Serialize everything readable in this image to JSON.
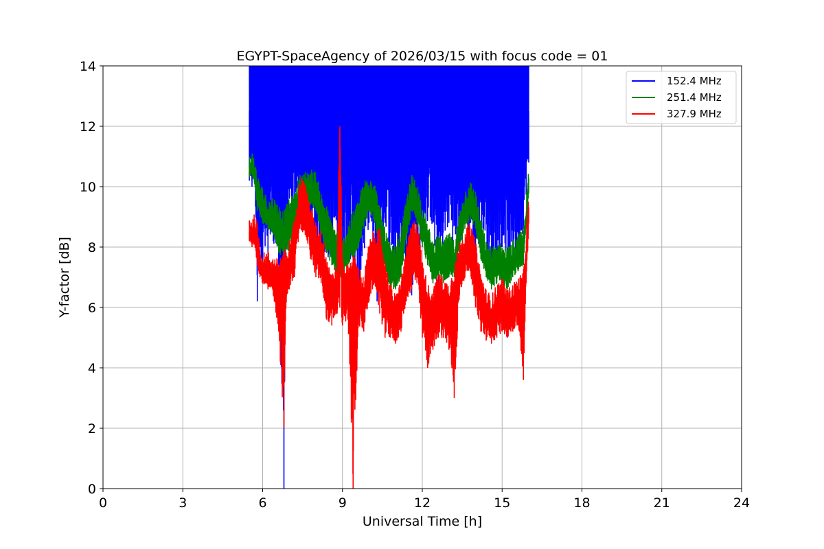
{
  "chart_data": {
    "type": "line",
    "title": "EGYPT-SpaceAgency of 2026/03/15 with focus code = 01",
    "xlabel": "Universal Time [h]",
    "ylabel": "Y-factor [dB]",
    "xlim": [
      0,
      24
    ],
    "ylim": [
      0,
      14
    ],
    "xticks": [
      0,
      3,
      6,
      9,
      12,
      15,
      18,
      21,
      24
    ],
    "yticks": [
      0,
      2,
      4,
      6,
      8,
      10,
      12,
      14
    ],
    "grid": true,
    "legend_position": "top-right",
    "series": [
      {
        "name": "152.4 MHz",
        "color": "#0000ff",
        "x": [
          5.5,
          5.6,
          5.7,
          5.8,
          5.9,
          6.0,
          6.2,
          6.4,
          6.6,
          6.8,
          6.9,
          7.0,
          7.2,
          7.5,
          7.8,
          8.0,
          8.3,
          8.6,
          9.0,
          9.3,
          9.6,
          10.0,
          10.3,
          10.6,
          11.0,
          11.3,
          11.6,
          12.0,
          12.3,
          12.6,
          13.0,
          13.3,
          13.6,
          14.0,
          14.3,
          14.6,
          15.0,
          15.3,
          15.6,
          15.8,
          16.0
        ],
        "y": [
          12.5,
          11.5,
          12.0,
          10.5,
          11.8,
          12.2,
          11.0,
          12.8,
          11.5,
          11.0,
          12.0,
          12.5,
          11.8,
          12.5,
          11.2,
          12.3,
          11.5,
          12.4,
          11.8,
          12.6,
          11.4,
          12.2,
          11.0,
          12.0,
          11.6,
          11.0,
          12.3,
          11.5,
          12.1,
          11.3,
          12.4,
          11.7,
          12.2,
          11.2,
          12.0,
          11.5,
          12.4,
          11.2,
          12.0,
          11.6,
          12.5
        ],
        "min_envelope": [
          10.2,
          10.0,
          10.5,
          6.2,
          8.0,
          7.0,
          7.6,
          8.2,
          7.4,
          0.0,
          8.0,
          9.6,
          8.5,
          9.0,
          8.2,
          7.8,
          7.5,
          7.6,
          8.0,
          7.6,
          6.2,
          8.8,
          6.2,
          8.8,
          7.0,
          7.8,
          6.4,
          8.4,
          9.0,
          6.5,
          8.8,
          7.0,
          9.0,
          7.5,
          8.6,
          7.2,
          8.0,
          7.4,
          7.6,
          8.6,
          10.8
        ]
      },
      {
        "name": "251.4 MHz",
        "color": "#008000",
        "x": [
          5.5,
          5.6,
          5.7,
          5.8,
          5.9,
          6.0,
          6.2,
          6.4,
          6.6,
          6.8,
          7.0,
          7.2,
          7.4,
          7.6,
          7.8,
          8.0,
          8.2,
          8.4,
          8.6,
          8.8,
          9.0,
          9.2,
          9.4,
          9.6,
          9.8,
          10.0,
          10.2,
          10.4,
          10.6,
          10.8,
          11.0,
          11.2,
          11.4,
          11.6,
          11.8,
          12.0,
          12.2,
          12.4,
          12.6,
          12.8,
          13.0,
          13.2,
          13.4,
          13.6,
          13.8,
          14.0,
          14.2,
          14.4,
          14.6,
          14.8,
          15.0,
          15.2,
          15.4,
          15.6,
          15.8,
          16.0
        ],
        "y": [
          10.5,
          10.6,
          10.4,
          9.8,
          9.6,
          9.4,
          9.0,
          9.1,
          8.8,
          8.6,
          9.0,
          9.2,
          9.8,
          9.9,
          10.0,
          9.9,
          9.2,
          8.8,
          8.2,
          8.0,
          7.6,
          8.2,
          8.6,
          9.0,
          9.6,
          9.9,
          9.6,
          8.8,
          8.0,
          7.5,
          7.4,
          8.0,
          9.0,
          9.8,
          9.6,
          8.8,
          8.2,
          7.6,
          7.8,
          7.6,
          7.9,
          7.6,
          8.6,
          9.3,
          9.6,
          9.3,
          8.4,
          7.6,
          7.4,
          7.6,
          7.5,
          7.4,
          7.6,
          7.8,
          8.0,
          10.0
        ],
        "min_envelope": [
          10.3,
          10.4,
          10.1,
          9.2,
          9.0,
          8.8,
          8.6,
          8.4,
          7.8,
          7.6,
          7.8,
          8.6,
          9.0,
          9.2,
          9.4,
          9.2,
          8.4,
          7.8,
          7.4,
          7.0,
          7.0,
          7.4,
          7.6,
          8.0,
          8.6,
          9.2,
          8.8,
          8.0,
          7.2,
          6.6,
          6.6,
          7.0,
          8.2,
          9.2,
          8.8,
          8.0,
          7.4,
          6.8,
          7.0,
          6.8,
          7.0,
          7.0,
          7.8,
          8.6,
          8.9,
          8.6,
          7.6,
          7.0,
          6.6,
          6.8,
          6.8,
          6.6,
          7.0,
          7.2,
          7.4,
          9.8
        ]
      },
      {
        "name": "327.9 MHz",
        "color": "#ff0000",
        "x": [
          5.5,
          5.6,
          5.7,
          5.8,
          5.9,
          6.0,
          6.2,
          6.4,
          6.6,
          6.8,
          6.9,
          7.0,
          7.2,
          7.4,
          7.6,
          7.8,
          8.0,
          8.2,
          8.4,
          8.6,
          8.8,
          8.9,
          9.0,
          9.2,
          9.4,
          9.6,
          9.8,
          10.0,
          10.2,
          10.4,
          10.6,
          10.8,
          11.0,
          11.2,
          11.4,
          11.6,
          11.8,
          12.0,
          12.2,
          12.4,
          12.6,
          12.8,
          13.0,
          13.2,
          13.4,
          13.6,
          13.8,
          14.0,
          14.2,
          14.4,
          14.6,
          14.8,
          15.0,
          15.2,
          15.4,
          15.6,
          15.8,
          16.0
        ],
        "y": [
          8.5,
          8.4,
          8.5,
          8.2,
          7.6,
          7.2,
          7.3,
          7.1,
          7.0,
          7.4,
          7.2,
          7.6,
          8.4,
          9.8,
          9.6,
          8.8,
          8.2,
          8.0,
          7.2,
          6.6,
          6.8,
          12.0,
          7.0,
          6.8,
          7.2,
          6.8,
          6.4,
          7.6,
          8.0,
          8.0,
          7.0,
          6.2,
          5.8,
          6.4,
          7.4,
          8.2,
          8.4,
          7.0,
          6.2,
          6.0,
          6.6,
          6.4,
          6.2,
          6.8,
          7.6,
          8.0,
          8.2,
          7.6,
          6.6,
          6.0,
          5.8,
          6.2,
          6.4,
          6.0,
          6.2,
          6.4,
          6.6,
          9.2
        ],
        "min_envelope": [
          8.2,
          8.0,
          8.1,
          7.4,
          7.0,
          6.8,
          6.6,
          6.4,
          5.2,
          2.0,
          6.4,
          6.6,
          7.0,
          8.6,
          8.4,
          7.6,
          7.0,
          6.8,
          5.6,
          5.4,
          5.8,
          6.0,
          5.4,
          5.6,
          0.0,
          5.4,
          5.2,
          6.2,
          6.8,
          5.8,
          5.0,
          5.0,
          4.8,
          5.2,
          6.2,
          6.6,
          6.8,
          5.0,
          4.0,
          4.6,
          5.0,
          5.0,
          4.6,
          3.0,
          6.4,
          7.0,
          7.2,
          6.0,
          5.2,
          4.9,
          4.8,
          5.0,
          5.2,
          5.0,
          5.2,
          5.4,
          3.6,
          8.8
        ]
      }
    ]
  }
}
